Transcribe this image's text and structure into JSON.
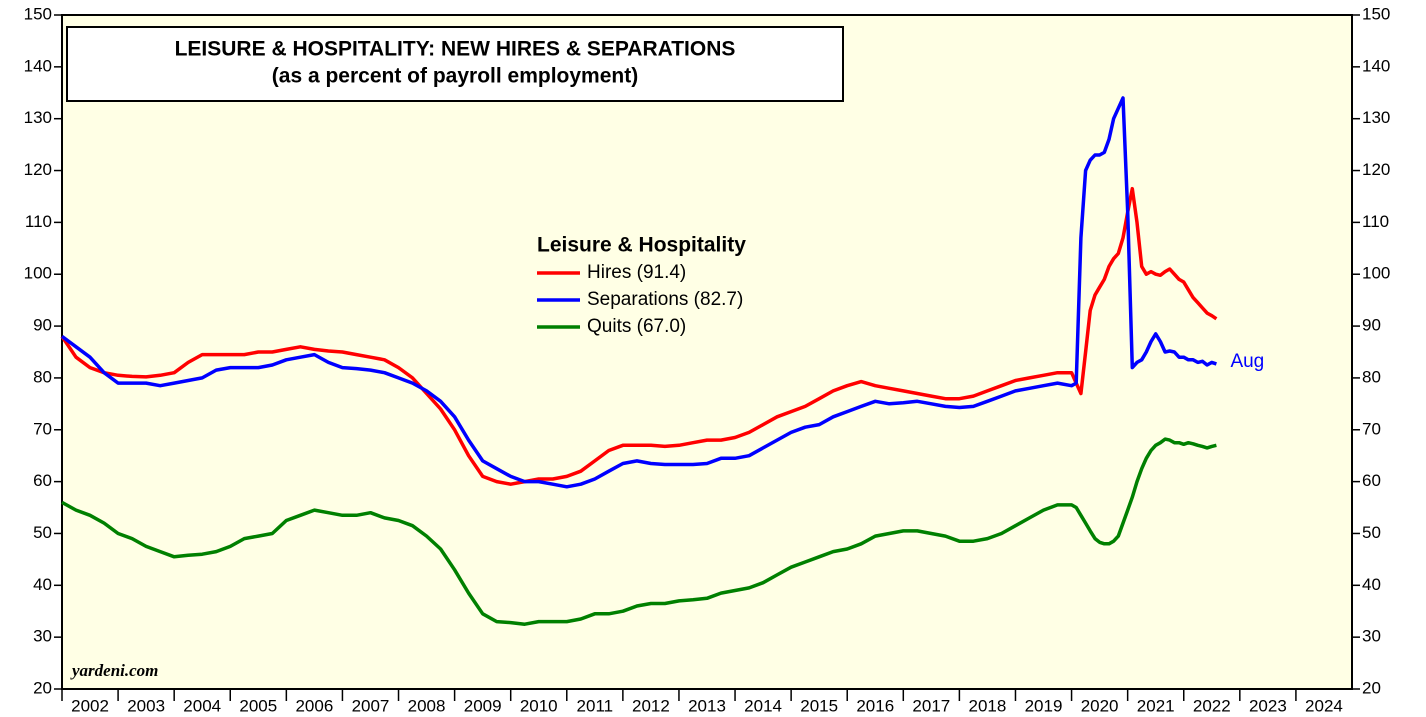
{
  "chart_data": {
    "type": "line",
    "title": "LEISURE & HOSPITALITY: NEW HIRES & SEPARATIONS",
    "subtitle": "(as a percent of payroll employment)",
    "legend_title": "Leisure & Hospitality",
    "annotations": {
      "last_point": "Aug",
      "source": "yardeni.com"
    },
    "xlim": [
      2002,
      2025
    ],
    "xticks": [
      2002,
      2003,
      2004,
      2005,
      2006,
      2007,
      2008,
      2009,
      2010,
      2011,
      2012,
      2013,
      2014,
      2015,
      2016,
      2017,
      2018,
      2019,
      2020,
      2021,
      2022,
      2023,
      2024
    ],
    "ylim": [
      20,
      150
    ],
    "yticks": [
      20,
      30,
      40,
      50,
      60,
      70,
      80,
      90,
      100,
      110,
      120,
      130,
      140,
      150
    ],
    "x": [
      2002,
      2002.25,
      2002.5,
      2002.75,
      2003,
      2003.25,
      2003.5,
      2003.75,
      2004,
      2004.25,
      2004.5,
      2004.75,
      2005,
      2005.25,
      2005.5,
      2005.75,
      2006,
      2006.25,
      2006.5,
      2006.75,
      2007,
      2007.25,
      2007.5,
      2007.75,
      2008,
      2008.25,
      2008.5,
      2008.75,
      2009,
      2009.25,
      2009.5,
      2009.75,
      2010,
      2010.25,
      2010.5,
      2010.75,
      2011,
      2011.25,
      2011.5,
      2011.75,
      2012,
      2012.25,
      2012.5,
      2012.75,
      2013,
      2013.25,
      2013.5,
      2013.75,
      2014,
      2014.25,
      2014.5,
      2014.75,
      2015,
      2015.25,
      2015.5,
      2015.75,
      2016,
      2016.25,
      2016.5,
      2016.75,
      2017,
      2017.25,
      2017.5,
      2017.75,
      2018,
      2018.25,
      2018.5,
      2018.75,
      2019,
      2019.25,
      2019.5,
      2019.75,
      2020,
      2020.083,
      2020.167,
      2020.25,
      2020.333,
      2020.417,
      2020.5,
      2020.583,
      2020.667,
      2020.75,
      2020.833,
      2020.917,
      2021,
      2021.083,
      2021.167,
      2021.25,
      2021.333,
      2021.417,
      2021.5,
      2021.583,
      2021.667,
      2021.75,
      2021.833,
      2021.917,
      2022,
      2022.083,
      2022.167,
      2022.25,
      2022.333,
      2022.417,
      2022.5,
      2022.583
    ],
    "series": [
      {
        "name": "Hires (91.4)",
        "color": "#ff0000",
        "values": [
          88,
          84,
          82,
          81,
          80.5,
          80.3,
          80.2,
          80.5,
          81,
          83,
          84.5,
          84.5,
          84.5,
          84.5,
          85,
          85,
          85.5,
          86,
          85.5,
          85.2,
          85,
          84.5,
          84,
          83.5,
          82,
          80,
          77,
          74,
          70,
          65,
          61,
          60,
          59.5,
          60,
          60.5,
          60.5,
          61,
          62,
          64,
          66,
          67,
          67,
          67,
          66.8,
          67,
          67.5,
          68,
          68,
          68.5,
          69.5,
          71,
          72.5,
          73.5,
          74.5,
          76,
          77.5,
          78.5,
          79.3,
          78.5,
          78,
          77.5,
          77,
          76.5,
          76,
          76,
          76.5,
          77.5,
          78.5,
          79.5,
          80,
          80.5,
          81,
          81,
          79,
          77,
          85,
          93,
          96,
          97.5,
          99,
          101.5,
          103,
          104,
          107,
          112,
          116.5,
          110,
          101.5,
          100,
          100.5,
          100,
          99.8,
          100.5,
          101,
          100,
          99,
          98.5,
          97,
          95.5,
          94.5,
          93.5,
          92.5,
          92,
          91.4
        ]
      },
      {
        "name": "Separations (82.7)",
        "color": "#0000ff",
        "values": [
          88,
          86,
          84,
          81,
          79,
          79,
          79,
          78.5,
          79,
          79.5,
          80,
          81.5,
          82,
          82,
          82,
          82.5,
          83.5,
          84,
          84.5,
          83,
          82,
          81.8,
          81.5,
          81,
          80,
          79,
          77.5,
          75.5,
          72.5,
          68,
          64,
          62.5,
          61,
          60,
          60,
          59.5,
          59,
          59.5,
          60.5,
          62,
          63.5,
          64,
          63.5,
          63.3,
          63.3,
          63.3,
          63.5,
          64.5,
          64.5,
          65,
          66.5,
          68,
          69.5,
          70.5,
          71,
          72.5,
          73.5,
          74.5,
          75.5,
          75,
          75.2,
          75.5,
          75,
          74.5,
          74.3,
          74.5,
          75.5,
          76.5,
          77.5,
          78,
          78.5,
          79,
          78.5,
          79,
          107,
          120,
          122,
          123,
          123,
          123.5,
          126,
          130,
          132,
          134,
          112,
          82,
          83,
          83.5,
          85,
          87,
          88.5,
          87,
          85,
          85.2,
          85,
          84,
          84,
          83.5,
          83.5,
          83,
          83.2,
          82.5,
          83,
          82.7
        ]
      },
      {
        "name": "Quits (67.0)",
        "color": "#008000",
        "values": [
          56,
          54.5,
          53.5,
          52,
          50,
          49,
          47.5,
          46.5,
          45.5,
          45.8,
          46,
          46.5,
          47.5,
          49,
          49.5,
          50,
          52.5,
          53.5,
          54.5,
          54,
          53.5,
          53.5,
          54,
          53,
          52.5,
          51.5,
          49.5,
          47,
          43,
          38.5,
          34.5,
          33,
          32.8,
          32.5,
          33,
          33,
          33,
          33.5,
          34.5,
          34.5,
          35,
          36,
          36.5,
          36.5,
          37,
          37.2,
          37.5,
          38.5,
          39,
          39.5,
          40.5,
          42,
          43.5,
          44.5,
          45.5,
          46.5,
          47,
          48,
          49.5,
          50,
          50.5,
          50.5,
          50,
          49.5,
          48.5,
          48.5,
          49,
          50,
          51.5,
          53,
          54.5,
          55.5,
          55.5,
          55,
          53.5,
          52,
          50.5,
          49,
          48.3,
          48,
          48,
          48.5,
          49.5,
          52,
          54.5,
          57,
          60,
          62.5,
          64.5,
          66,
          67,
          67.5,
          68.2,
          68,
          67.5,
          67.5,
          67.2,
          67.5,
          67.3,
          67,
          66.8,
          66.5,
          66.8,
          67.0
        ]
      }
    ]
  }
}
